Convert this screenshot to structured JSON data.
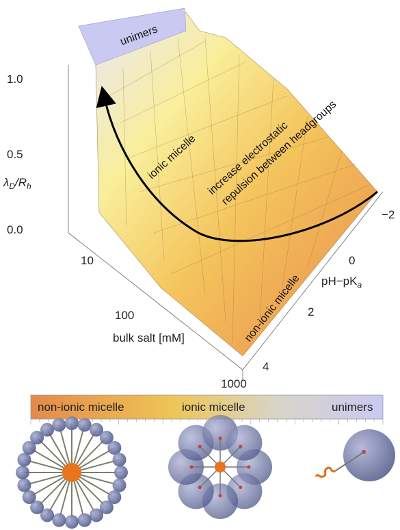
{
  "surface_plot": {
    "z_label": [
      "λ",
      "D",
      "/R",
      "h"
    ],
    "z_ticks": [
      "1.0",
      "0.5",
      "0.0"
    ],
    "salt_label": "bulk salt [mM]",
    "salt_ticks": [
      "10",
      "100",
      "1000"
    ],
    "ph_label": [
      "pH−pK",
      "a"
    ],
    "ph_ticks": [
      "−2",
      "0",
      "2",
      "4"
    ],
    "annotations": [
      "unimers",
      "ionic micelle",
      "increase electrostatic",
      "repulsion between headgroups",
      "non-ionic micelle"
    ]
  },
  "colorbar": {
    "labels": [
      "non-ionic micelle",
      "ionic micelle",
      "unimers"
    ]
  }
}
